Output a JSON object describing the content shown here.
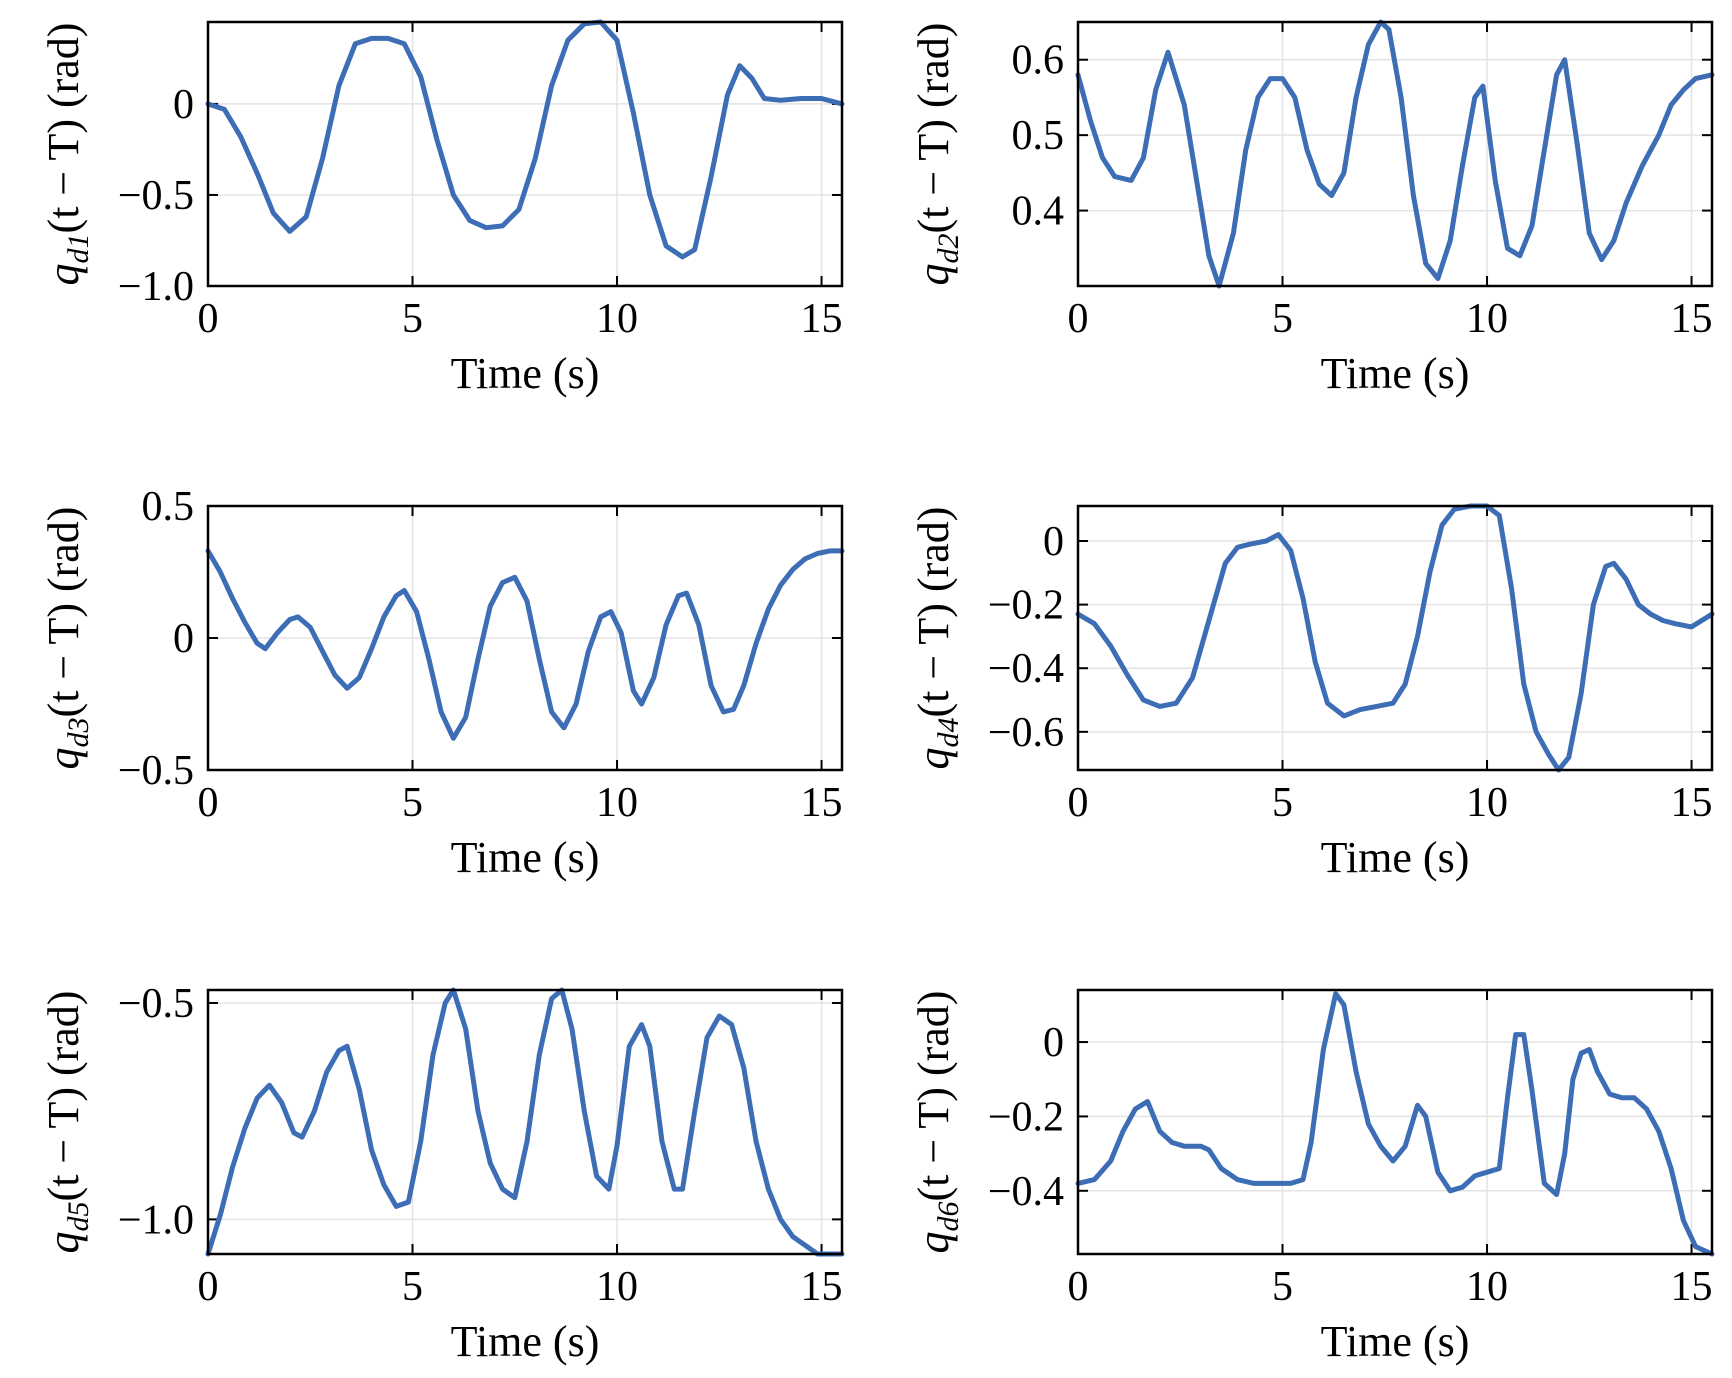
{
  "line_color": "#3d6db5",
  "chart_data": [
    {
      "type": "line",
      "xlabel": "Time (s)",
      "ylabel": {
        "prefix": "q",
        "sub": "d1",
        "suffix": "(t − T) (rad)"
      },
      "xlim": [
        0,
        15.5
      ],
      "ylim": [
        -1.0,
        0.45
      ],
      "xticks": [
        0,
        5,
        10,
        15
      ],
      "xtick_labels": [
        "0",
        "5",
        "10",
        "15"
      ],
      "yticks": [
        -1.0,
        -0.5,
        0
      ],
      "ytick_labels": [
        "−1.0",
        "−0.5",
        "0"
      ],
      "grid": true,
      "x": [
        0,
        0.4,
        0.8,
        1.2,
        1.6,
        2.0,
        2.4,
        2.8,
        3.2,
        3.6,
        4.0,
        4.4,
        4.8,
        5.2,
        5.6,
        6.0,
        6.4,
        6.8,
        7.2,
        7.6,
        8.0,
        8.4,
        8.8,
        9.2,
        9.6,
        10.0,
        10.4,
        10.8,
        11.2,
        11.6,
        11.9,
        12.3,
        12.7,
        13.0,
        13.3,
        13.6,
        14.0,
        14.5,
        15.0,
        15.5
      ],
      "y": [
        0,
        -0.03,
        -0.18,
        -0.38,
        -0.6,
        -0.7,
        -0.62,
        -0.3,
        0.1,
        0.33,
        0.36,
        0.36,
        0.33,
        0.15,
        -0.2,
        -0.5,
        -0.64,
        -0.68,
        -0.67,
        -0.58,
        -0.3,
        0.1,
        0.35,
        0.44,
        0.45,
        0.35,
        -0.05,
        -0.5,
        -0.78,
        -0.84,
        -0.8,
        -0.4,
        0.05,
        0.21,
        0.14,
        0.03,
        0.02,
        0.03,
        0.03,
        0.0
      ]
    },
    {
      "type": "line",
      "xlabel": "Time (s)",
      "ylabel": {
        "prefix": "q",
        "sub": "d2",
        "suffix": "(t − T) (rad)"
      },
      "xlim": [
        0,
        15.5
      ],
      "ylim": [
        0.3,
        0.65
      ],
      "xticks": [
        0,
        5,
        10,
        15
      ],
      "xtick_labels": [
        "0",
        "5",
        "10",
        "15"
      ],
      "yticks": [
        0.4,
        0.5,
        0.6
      ],
      "ytick_labels": [
        "0.4",
        "0.5",
        "0.6"
      ],
      "grid": true,
      "x": [
        0,
        0.3,
        0.6,
        0.9,
        1.3,
        1.6,
        1.9,
        2.2,
        2.6,
        2.9,
        3.2,
        3.45,
        3.8,
        4.1,
        4.4,
        4.7,
        5.0,
        5.3,
        5.6,
        5.9,
        6.2,
        6.5,
        6.8,
        7.1,
        7.4,
        7.6,
        7.9,
        8.2,
        8.5,
        8.8,
        9.1,
        9.4,
        9.7,
        9.9,
        10.2,
        10.5,
        10.8,
        11.1,
        11.4,
        11.7,
        11.9,
        12.2,
        12.5,
        12.8,
        13.1,
        13.4,
        13.8,
        14.2,
        14.5,
        14.8,
        15.1,
        15.5
      ],
      "y": [
        0.58,
        0.52,
        0.47,
        0.445,
        0.44,
        0.47,
        0.56,
        0.61,
        0.54,
        0.44,
        0.34,
        0.3,
        0.37,
        0.48,
        0.55,
        0.575,
        0.575,
        0.55,
        0.48,
        0.435,
        0.42,
        0.45,
        0.55,
        0.62,
        0.65,
        0.64,
        0.55,
        0.42,
        0.33,
        0.31,
        0.36,
        0.46,
        0.55,
        0.565,
        0.44,
        0.35,
        0.34,
        0.38,
        0.48,
        0.58,
        0.6,
        0.49,
        0.37,
        0.335,
        0.36,
        0.41,
        0.46,
        0.5,
        0.54,
        0.56,
        0.575,
        0.58
      ]
    },
    {
      "type": "line",
      "xlabel": "Time (s)",
      "ylabel": {
        "prefix": "q",
        "sub": "d3",
        "suffix": "(t − T) (rad)"
      },
      "xlim": [
        0,
        15.5
      ],
      "ylim": [
        -0.5,
        0.5
      ],
      "xticks": [
        0,
        5,
        10,
        15
      ],
      "xtick_labels": [
        "0",
        "5",
        "10",
        "15"
      ],
      "yticks": [
        -0.5,
        0,
        0.5
      ],
      "ytick_labels": [
        "−0.5",
        "0",
        "0.5"
      ],
      "grid": true,
      "x": [
        0,
        0.3,
        0.6,
        0.9,
        1.2,
        1.4,
        1.7,
        2.0,
        2.2,
        2.5,
        2.8,
        3.1,
        3.4,
        3.7,
        4.0,
        4.3,
        4.6,
        4.8,
        5.1,
        5.4,
        5.7,
        6.0,
        6.3,
        6.6,
        6.9,
        7.2,
        7.5,
        7.8,
        8.1,
        8.4,
        8.7,
        9.0,
        9.3,
        9.6,
        9.85,
        10.1,
        10.4,
        10.6,
        10.9,
        11.2,
        11.5,
        11.7,
        12.0,
        12.3,
        12.6,
        12.85,
        13.1,
        13.4,
        13.7,
        14.0,
        14.3,
        14.6,
        14.9,
        15.2,
        15.5
      ],
      "y": [
        0.33,
        0.25,
        0.15,
        0.06,
        -0.02,
        -0.04,
        0.02,
        0.07,
        0.08,
        0.04,
        -0.05,
        -0.14,
        -0.19,
        -0.15,
        -0.04,
        0.08,
        0.16,
        0.18,
        0.1,
        -0.08,
        -0.28,
        -0.38,
        -0.3,
        -0.08,
        0.12,
        0.21,
        0.23,
        0.14,
        -0.08,
        -0.28,
        -0.34,
        -0.25,
        -0.05,
        0.08,
        0.1,
        0.02,
        -0.2,
        -0.25,
        -0.15,
        0.05,
        0.16,
        0.17,
        0.05,
        -0.18,
        -0.28,
        -0.27,
        -0.18,
        -0.02,
        0.11,
        0.2,
        0.26,
        0.3,
        0.32,
        0.33,
        0.33
      ]
    },
    {
      "type": "line",
      "xlabel": "Time (s)",
      "ylabel": {
        "prefix": "q",
        "sub": "d4",
        "suffix": "(t − T) (rad)"
      },
      "xlim": [
        0,
        15.5
      ],
      "ylim": [
        -0.72,
        0.11
      ],
      "xticks": [
        0,
        5,
        10,
        15
      ],
      "xtick_labels": [
        "0",
        "5",
        "10",
        "15"
      ],
      "yticks": [
        -0.6,
        -0.4,
        -0.2,
        0
      ],
      "ytick_labels": [
        "−0.6",
        "−0.4",
        "−0.2",
        "0"
      ],
      "grid": true,
      "x": [
        0,
        0.4,
        0.8,
        1.2,
        1.6,
        2.0,
        2.4,
        2.8,
        3.2,
        3.6,
        3.9,
        4.2,
        4.6,
        4.9,
        5.2,
        5.5,
        5.8,
        6.1,
        6.5,
        6.9,
        7.3,
        7.7,
        8.0,
        8.3,
        8.6,
        8.9,
        9.2,
        9.6,
        10.0,
        10.3,
        10.6,
        10.9,
        11.2,
        11.5,
        11.75,
        12.0,
        12.3,
        12.6,
        12.9,
        13.1,
        13.4,
        13.7,
        14.0,
        14.3,
        14.6,
        15.0,
        15.5
      ],
      "y": [
        -0.23,
        -0.26,
        -0.33,
        -0.42,
        -0.5,
        -0.52,
        -0.51,
        -0.43,
        -0.25,
        -0.07,
        -0.02,
        -0.01,
        0.0,
        0.02,
        -0.03,
        -0.18,
        -0.38,
        -0.51,
        -0.55,
        -0.53,
        -0.52,
        -0.51,
        -0.45,
        -0.3,
        -0.1,
        0.05,
        0.1,
        0.11,
        0.11,
        0.08,
        -0.15,
        -0.45,
        -0.6,
        -0.67,
        -0.72,
        -0.68,
        -0.48,
        -0.2,
        -0.08,
        -0.07,
        -0.12,
        -0.2,
        -0.23,
        -0.25,
        -0.26,
        -0.27,
        -0.23
      ]
    },
    {
      "type": "line",
      "xlabel": "Time (s)",
      "ylabel": {
        "prefix": "q",
        "sub": "d5",
        "suffix": "(t − T) (rad)"
      },
      "xlim": [
        0,
        15.5
      ],
      "ylim": [
        -1.08,
        -0.47
      ],
      "xticks": [
        0,
        5,
        10,
        15
      ],
      "xtick_labels": [
        "0",
        "5",
        "10",
        "15"
      ],
      "yticks": [
        -1.0,
        -0.5
      ],
      "ytick_labels": [
        "−1.0",
        "−0.5"
      ],
      "grid": true,
      "x": [
        0,
        0.3,
        0.6,
        0.9,
        1.2,
        1.5,
        1.8,
        2.1,
        2.3,
        2.6,
        2.9,
        3.2,
        3.4,
        3.7,
        4.0,
        4.3,
        4.6,
        4.9,
        5.2,
        5.5,
        5.8,
        6.0,
        6.3,
        6.6,
        6.9,
        7.2,
        7.5,
        7.8,
        8.1,
        8.4,
        8.65,
        8.9,
        9.2,
        9.5,
        9.8,
        10.0,
        10.3,
        10.6,
        10.8,
        11.1,
        11.4,
        11.6,
        11.9,
        12.2,
        12.5,
        12.8,
        13.1,
        13.4,
        13.7,
        14.0,
        14.3,
        14.6,
        14.9,
        15.2,
        15.5
      ],
      "y": [
        -1.08,
        -0.99,
        -0.88,
        -0.79,
        -0.72,
        -0.69,
        -0.73,
        -0.8,
        -0.81,
        -0.75,
        -0.66,
        -0.61,
        -0.6,
        -0.7,
        -0.84,
        -0.92,
        -0.97,
        -0.96,
        -0.82,
        -0.62,
        -0.5,
        -0.47,
        -0.56,
        -0.75,
        -0.87,
        -0.93,
        -0.95,
        -0.82,
        -0.62,
        -0.49,
        -0.47,
        -0.56,
        -0.75,
        -0.9,
        -0.93,
        -0.83,
        -0.6,
        -0.55,
        -0.6,
        -0.82,
        -0.93,
        -0.93,
        -0.75,
        -0.58,
        -0.53,
        -0.55,
        -0.65,
        -0.82,
        -0.93,
        -1.0,
        -1.04,
        -1.06,
        -1.08,
        -1.08,
        -1.08
      ]
    },
    {
      "type": "line",
      "xlabel": "Time (s)",
      "ylabel": {
        "prefix": "q",
        "sub": "d6",
        "suffix": "(t − T) (rad)"
      },
      "xlim": [
        0,
        15.5
      ],
      "ylim": [
        -0.57,
        0.14
      ],
      "xticks": [
        0,
        5,
        10,
        15
      ],
      "xtick_labels": [
        "0",
        "5",
        "10",
        "15"
      ],
      "yticks": [
        -0.4,
        -0.2,
        0
      ],
      "ytick_labels": [
        "−0.4",
        "−0.2",
        "0"
      ],
      "grid": true,
      "x": [
        0,
        0.4,
        0.8,
        1.1,
        1.4,
        1.7,
        2.0,
        2.3,
        2.6,
        3.0,
        3.2,
        3.5,
        3.9,
        4.3,
        4.8,
        5.2,
        5.5,
        5.7,
        6.0,
        6.3,
        6.5,
        6.8,
        7.1,
        7.4,
        7.7,
        8.0,
        8.3,
        8.5,
        8.8,
        9.1,
        9.4,
        9.7,
        10.0,
        10.3,
        10.5,
        10.7,
        10.9,
        11.1,
        11.4,
        11.7,
        11.9,
        12.1,
        12.3,
        12.5,
        12.7,
        13.0,
        13.3,
        13.6,
        13.9,
        14.2,
        14.5,
        14.8,
        15.1,
        15.5
      ],
      "y": [
        -0.38,
        -0.37,
        -0.32,
        -0.24,
        -0.18,
        -0.16,
        -0.24,
        -0.27,
        -0.28,
        -0.28,
        -0.29,
        -0.34,
        -0.37,
        -0.38,
        -0.38,
        -0.38,
        -0.37,
        -0.27,
        -0.02,
        0.13,
        0.1,
        -0.08,
        -0.22,
        -0.28,
        -0.32,
        -0.28,
        -0.17,
        -0.2,
        -0.35,
        -0.4,
        -0.39,
        -0.36,
        -0.35,
        -0.34,
        -0.15,
        0.02,
        0.02,
        -0.13,
        -0.38,
        -0.41,
        -0.3,
        -0.1,
        -0.03,
        -0.02,
        -0.08,
        -0.14,
        -0.15,
        -0.15,
        -0.18,
        -0.24,
        -0.34,
        -0.48,
        -0.55,
        -0.57
      ]
    }
  ]
}
